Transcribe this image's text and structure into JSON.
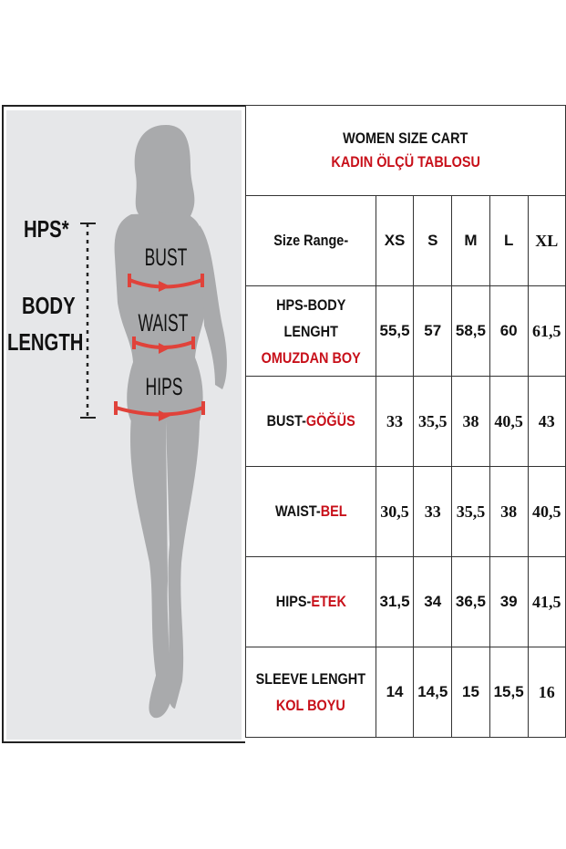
{
  "diagram": {
    "hps_label": "HPS*",
    "body_length_label_1": "BODY",
    "body_length_label_2": "LENGTH",
    "bust_label": "BUST",
    "waist_label": "WAIST",
    "hips_label": "HIPS",
    "arrow_color": "#e0423a",
    "silhouette_color": "#a9aaac"
  },
  "table": {
    "title": "WOMEN SIZE CART",
    "title_tr": "KADIN ÖLÇÜ TABLOSU",
    "size_range_label": "Size Range-",
    "sizes": [
      "XS",
      "S",
      "M",
      "L",
      "XL"
    ],
    "rows": [
      {
        "label": "HPS-BODY",
        "label2": "LENGHT",
        "label_tr": "OMUZDAN BOY",
        "values": [
          "55,5",
          "57",
          "58,5",
          "60",
          "61,5"
        ]
      },
      {
        "label": "BUST-",
        "label_tr": "GÖĞÜS",
        "values": [
          "33",
          "35,5",
          "38",
          "40,5",
          "43"
        ]
      },
      {
        "label": "WAIST-",
        "label_tr": "BEL",
        "values": [
          "30,5",
          "33",
          "35,5",
          "38",
          "40,5"
        ]
      },
      {
        "label": "HIPS-",
        "label_tr": "ETEK",
        "values": [
          "31,5",
          "34",
          "36,5",
          "39",
          "41,5"
        ]
      },
      {
        "label": "SLEEVE LENGHT",
        "label_tr": "KOL BOYU",
        "values": [
          "14",
          "14,5",
          "15",
          "15,5",
          "16"
        ]
      }
    ],
    "accent_color": "#c8101a"
  }
}
